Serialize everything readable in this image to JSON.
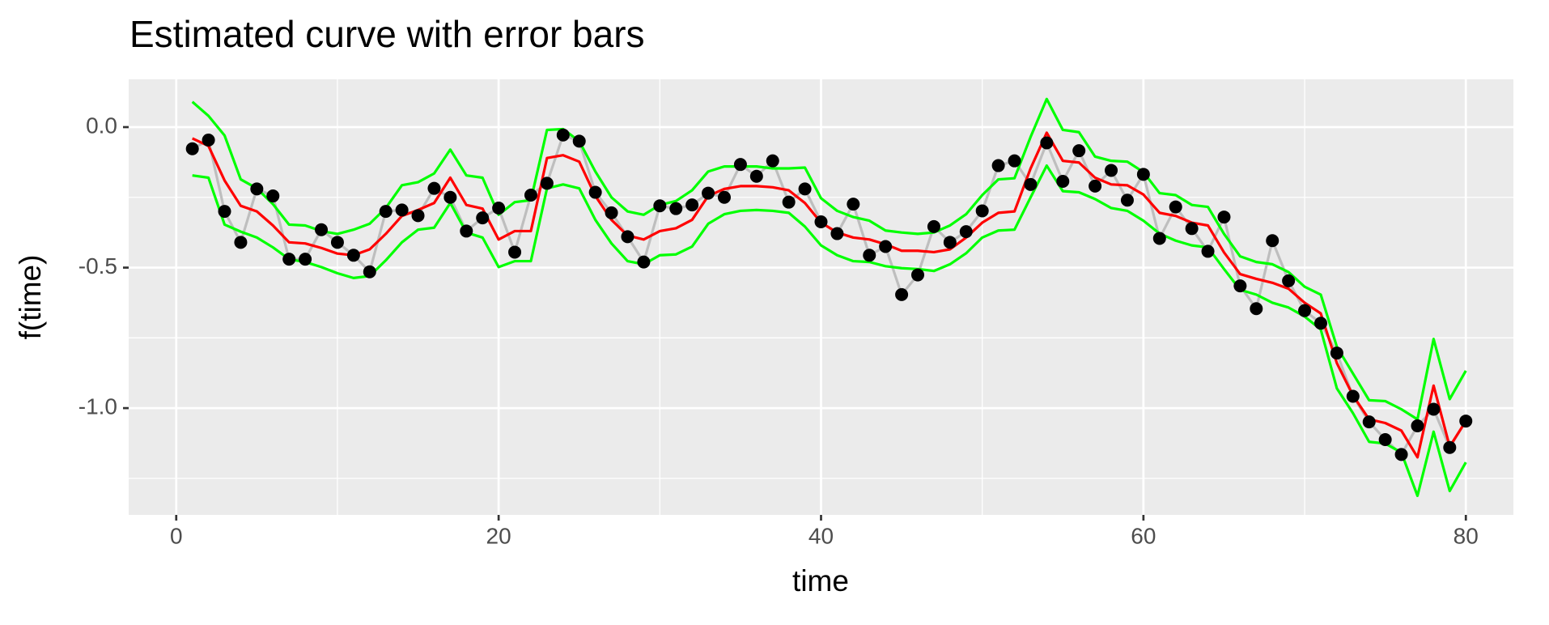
{
  "chart_data": {
    "type": "line",
    "title": "Estimated curve with error bars",
    "xlabel": "time",
    "ylabel": "f(time)",
    "x": [
      1,
      2,
      3,
      4,
      5,
      6,
      7,
      8,
      9,
      10,
      11,
      12,
      13,
      14,
      15,
      16,
      17,
      18,
      19,
      20,
      21,
      22,
      23,
      24,
      25,
      26,
      27,
      28,
      29,
      30,
      31,
      32,
      33,
      34,
      35,
      36,
      37,
      38,
      39,
      40,
      41,
      42,
      43,
      44,
      45,
      46,
      47,
      48,
      49,
      50,
      51,
      52,
      53,
      54,
      55,
      56,
      57,
      58,
      59,
      60,
      61,
      62,
      63,
      64,
      65,
      66,
      67,
      68,
      69,
      70,
      71,
      72,
      73,
      74,
      75,
      76,
      77,
      78,
      79,
      80
    ],
    "observed": {
      "color": "#000000",
      "line_color": "#bebebe",
      "values": [
        -0.077,
        -0.046,
        -0.3,
        -0.41,
        -0.22,
        -0.245,
        -0.47,
        -0.47,
        -0.365,
        -0.41,
        -0.456,
        -0.515,
        -0.3,
        -0.295,
        -0.315,
        -0.218,
        -0.25,
        -0.37,
        -0.323,
        -0.288,
        -0.445,
        -0.242,
        -0.2,
        -0.028,
        -0.05,
        -0.232,
        -0.305,
        -0.39,
        -0.48,
        -0.28,
        -0.29,
        -0.277,
        -0.235,
        -0.25,
        -0.133,
        -0.175,
        -0.12,
        -0.267,
        -0.22,
        -0.337,
        -0.379,
        -0.274,
        -0.456,
        -0.425,
        -0.596,
        -0.526,
        -0.354,
        -0.41,
        -0.372,
        -0.298,
        -0.137,
        -0.12,
        -0.204,
        -0.056,
        -0.193,
        -0.084,
        -0.21,
        -0.154,
        -0.26,
        -0.168,
        -0.396,
        -0.284,
        -0.361,
        -0.442,
        -0.32,
        -0.565,
        -0.646,
        -0.404,
        -0.547,
        -0.653,
        -0.698,
        -0.804,
        -0.958,
        -1.049,
        -1.112,
        -1.165,
        -1.063,
        -1.004,
        -1.14,
        -1.046
      ]
    },
    "estimate": {
      "color": "#ff0000",
      "values": [
        -0.04,
        -0.067,
        -0.19,
        -0.28,
        -0.3,
        -0.35,
        -0.41,
        -0.414,
        -0.43,
        -0.45,
        -0.456,
        -0.435,
        -0.38,
        -0.316,
        -0.295,
        -0.27,
        -0.18,
        -0.277,
        -0.29,
        -0.4,
        -0.37,
        -0.37,
        -0.11,
        -0.1,
        -0.123,
        -0.245,
        -0.33,
        -0.386,
        -0.4,
        -0.37,
        -0.36,
        -0.33,
        -0.245,
        -0.22,
        -0.21,
        -0.21,
        -0.214,
        -0.225,
        -0.27,
        -0.34,
        -0.375,
        -0.393,
        -0.4,
        -0.417,
        -0.44,
        -0.44,
        -0.445,
        -0.435,
        -0.393,
        -0.34,
        -0.305,
        -0.3,
        -0.147,
        -0.02,
        -0.12,
        -0.126,
        -0.18,
        -0.204,
        -0.207,
        -0.24,
        -0.305,
        -0.316,
        -0.34,
        -0.35,
        -0.446,
        -0.523,
        -0.54,
        -0.554,
        -0.575,
        -0.625,
        -0.663,
        -0.84,
        -0.955,
        -1.04,
        -1.053,
        -1.08,
        -1.175,
        -0.92,
        -1.137,
        -1.046
      ]
    },
    "upper": {
      "color": "#00ff00",
      "values": [
        0.09,
        0.04,
        -0.03,
        -0.186,
        -0.218,
        -0.274,
        -0.347,
        -0.35,
        -0.37,
        -0.38,
        -0.365,
        -0.344,
        -0.288,
        -0.207,
        -0.196,
        -0.165,
        -0.08,
        -0.172,
        -0.18,
        -0.312,
        -0.267,
        -0.26,
        -0.01,
        -0.007,
        -0.05,
        -0.158,
        -0.25,
        -0.3,
        -0.312,
        -0.277,
        -0.263,
        -0.225,
        -0.158,
        -0.14,
        -0.14,
        -0.14,
        -0.147,
        -0.147,
        -0.144,
        -0.253,
        -0.298,
        -0.32,
        -0.333,
        -0.368,
        -0.375,
        -0.38,
        -0.375,
        -0.35,
        -0.31,
        -0.242,
        -0.186,
        -0.182,
        -0.035,
        0.1,
        -0.01,
        -0.018,
        -0.105,
        -0.12,
        -0.123,
        -0.16,
        -0.235,
        -0.242,
        -0.277,
        -0.284,
        -0.38,
        -0.46,
        -0.48,
        -0.488,
        -0.516,
        -0.568,
        -0.596,
        -0.782,
        -0.877,
        -0.972,
        -0.975,
        -1.004,
        -1.04,
        -0.754,
        -0.968,
        -0.867
      ]
    },
    "lower": {
      "color": "#00ff00",
      "values": [
        -0.172,
        -0.18,
        -0.347,
        -0.372,
        -0.393,
        -0.428,
        -0.47,
        -0.48,
        -0.498,
        -0.52,
        -0.537,
        -0.53,
        -0.474,
        -0.41,
        -0.365,
        -0.358,
        -0.27,
        -0.375,
        -0.393,
        -0.498,
        -0.477,
        -0.477,
        -0.218,
        -0.204,
        -0.218,
        -0.33,
        -0.414,
        -0.477,
        -0.488,
        -0.456,
        -0.453,
        -0.425,
        -0.344,
        -0.31,
        -0.298,
        -0.295,
        -0.298,
        -0.305,
        -0.354,
        -0.421,
        -0.456,
        -0.477,
        -0.48,
        -0.495,
        -0.502,
        -0.505,
        -0.512,
        -0.488,
        -0.449,
        -0.393,
        -0.368,
        -0.365,
        -0.25,
        -0.137,
        -0.228,
        -0.232,
        -0.256,
        -0.288,
        -0.298,
        -0.333,
        -0.379,
        -0.404,
        -0.421,
        -0.428,
        -0.505,
        -0.579,
        -0.596,
        -0.625,
        -0.642,
        -0.674,
        -0.72,
        -0.93,
        -1.018,
        -1.12,
        -1.126,
        -1.158,
        -1.312,
        -1.084,
        -1.295,
        -1.193
      ]
    },
    "xlim": [
      -2.95,
      82.95
    ],
    "ylim": [
      -1.38,
      0.17
    ],
    "xticks": [
      0,
      20,
      40,
      60,
      80
    ],
    "yticks": [
      {
        "value": 0,
        "label": "0.0"
      },
      {
        "value": -0.5,
        "label": "-0.5"
      },
      {
        "value": -1,
        "label": "-1.0"
      }
    ],
    "xminor": [
      10,
      30,
      50,
      70
    ],
    "yminor": [
      -0.25,
      -0.75,
      -1.25
    ],
    "grid": true,
    "panel_color": "#ebebeb"
  }
}
